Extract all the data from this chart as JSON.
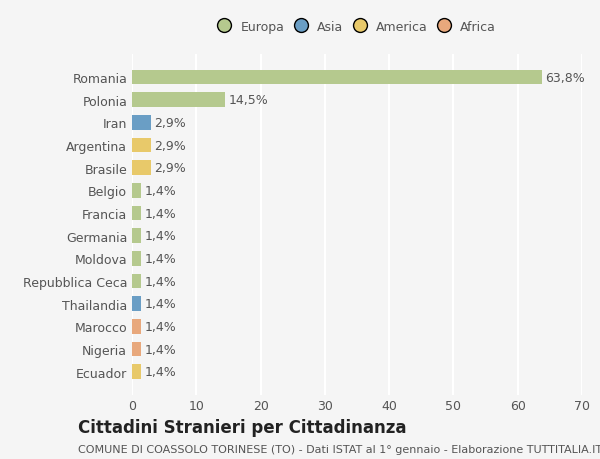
{
  "categories": [
    "Romania",
    "Polonia",
    "Iran",
    "Argentina",
    "Brasile",
    "Belgio",
    "Francia",
    "Germania",
    "Moldova",
    "Repubblica Ceca",
    "Thailandia",
    "Marocco",
    "Nigeria",
    "Ecuador"
  ],
  "values": [
    63.8,
    14.5,
    2.9,
    2.9,
    2.9,
    1.4,
    1.4,
    1.4,
    1.4,
    1.4,
    1.4,
    1.4,
    1.4,
    1.4
  ],
  "labels": [
    "63,8%",
    "14,5%",
    "2,9%",
    "2,9%",
    "2,9%",
    "1,4%",
    "1,4%",
    "1,4%",
    "1,4%",
    "1,4%",
    "1,4%",
    "1,4%",
    "1,4%",
    "1,4%"
  ],
  "continents": [
    "Europa",
    "Europa",
    "Asia",
    "America",
    "America",
    "Europa",
    "Europa",
    "Europa",
    "Europa",
    "Europa",
    "Asia",
    "Africa",
    "Africa",
    "America"
  ],
  "continent_colors": {
    "Europa": "#b5c98e",
    "Asia": "#6a9ec5",
    "America": "#e8c96a",
    "Africa": "#e8a87c"
  },
  "legend_order": [
    "Europa",
    "Asia",
    "America",
    "Africa"
  ],
  "xlim": [
    0,
    70
  ],
  "xticks": [
    0,
    10,
    20,
    30,
    40,
    50,
    60,
    70
  ],
  "title": "Cittadini Stranieri per Cittadinanza",
  "subtitle": "COMUNE DI COASSOLO TORINESE (TO) - Dati ISTAT al 1° gennaio - Elaborazione TUTTITALIA.IT",
  "background_color": "#f5f5f5",
  "grid_color": "#ffffff",
  "bar_height": 0.65,
  "label_fontsize": 9,
  "tick_fontsize": 9,
  "title_fontsize": 12,
  "subtitle_fontsize": 8
}
